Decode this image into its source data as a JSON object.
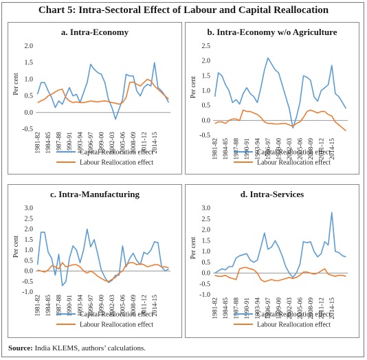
{
  "title": "Chart 5: Intra-Sectoral Effect of Labour and Capital Reallocation",
  "source": {
    "label": "Source:",
    "text": "India KLEMS, authors’ calculations."
  },
  "colors": {
    "capital": "#5B9BD5",
    "labour": "#ED7D31"
  },
  "chart_data": [
    {
      "type": "line",
      "title": "a. Intra-Economy",
      "ylabel": "Per cent",
      "ylim": [
        -0.5,
        2.0
      ],
      "yticks": [
        "2.0",
        "1.5",
        "1.0",
        "0.5",
        "0.0",
        "-0.5"
      ],
      "yvals": [
        2.0,
        1.5,
        1.0,
        0.5,
        0.0,
        -0.5
      ],
      "x_tick_labels": [
        "1981-82",
        "1984-85",
        "1987-88",
        "1990-91",
        "1993-94",
        "1996-97",
        "1999-00",
        "2002-03",
        "2005-06",
        "2008-09",
        "2011-12",
        "2014-15"
      ],
      "series": [
        {
          "name": "Capital Reallocation effect",
          "values": [
            0.55,
            0.9,
            0.9,
            0.65,
            0.45,
            0.15,
            0.35,
            0.25,
            0.5,
            0.75,
            0.5,
            0.55,
            0.3,
            0.6,
            0.9,
            1.45,
            1.3,
            1.2,
            1.15,
            0.9,
            0.4,
            0.15,
            -0.2,
            0.1,
            0.4,
            1.15,
            1.1,
            1.1,
            0.65,
            0.5,
            0.75,
            0.85,
            0.8,
            1.5,
            0.75,
            0.65,
            0.5,
            0.3
          ]
        },
        {
          "name": "Labour Reallocation effect",
          "values": [
            0.3,
            0.35,
            0.4,
            0.5,
            0.55,
            0.62,
            0.68,
            0.7,
            0.45,
            0.35,
            0.3,
            0.32,
            0.3,
            0.3,
            0.32,
            0.35,
            0.33,
            0.32,
            0.34,
            0.35,
            0.33,
            0.3,
            0.28,
            0.25,
            0.3,
            0.45,
            0.9,
            0.92,
            0.85,
            0.8,
            0.9,
            1.0,
            0.95,
            0.8,
            0.7,
            0.6,
            0.5,
            0.4
          ]
        }
      ]
    },
    {
      "type": "line",
      "title": "b. Intra-Economy w/o Agriculture",
      "ylabel": "Per cent",
      "ylim": [
        -0.5,
        2.5
      ],
      "yticks": [
        "2.5",
        "2.0",
        "1.5",
        "1.0",
        "0.5",
        "0.0",
        "-0.5"
      ],
      "yvals": [
        2.5,
        2.0,
        1.5,
        1.0,
        0.5,
        0.0,
        -0.5
      ],
      "x_tick_labels": [
        "1981-82",
        "1984-85",
        "1987-88",
        "1990-91",
        "1993-94",
        "1996-97",
        "1999-00",
        "2002-03",
        "2005-06",
        "2008-09",
        "2011-12",
        "2014-15"
      ],
      "series": [
        {
          "name": "Capital Reallocation effect",
          "values": [
            0.8,
            1.6,
            1.5,
            1.2,
            1.0,
            0.6,
            0.7,
            0.55,
            0.9,
            1.1,
            0.9,
            0.8,
            0.6,
            1.1,
            1.7,
            2.1,
            1.9,
            1.7,
            1.6,
            1.2,
            0.8,
            0.4,
            -0.25,
            0.1,
            0.6,
            1.5,
            1.45,
            1.35,
            0.8,
            0.65,
            1.0,
            1.1,
            1.2,
            1.85,
            0.9,
            0.8,
            0.6,
            0.4
          ]
        },
        {
          "name": "Labour Reallocation effect",
          "values": [
            -0.1,
            -0.05,
            -0.05,
            -0.1,
            0.0,
            0.05,
            0.05,
            0.0,
            0.35,
            0.3,
            0.3,
            0.25,
            0.2,
            0.1,
            -0.05,
            -0.1,
            -0.1,
            -0.12,
            -0.12,
            -0.1,
            -0.1,
            -0.15,
            -0.2,
            -0.1,
            -0.05,
            0.1,
            0.3,
            0.35,
            0.3,
            0.25,
            0.3,
            0.3,
            0.2,
            0.15,
            -0.05,
            -0.15,
            -0.25,
            -0.35
          ]
        }
      ]
    },
    {
      "type": "line",
      "title": "c. Intra-Manufacturing",
      "ylabel": "Per cent",
      "ylim": [
        -1.0,
        3.0
      ],
      "yticks": [
        "3.0",
        "2.5",
        "2.0",
        "1.5",
        "1.0",
        "0.5",
        "0.0",
        "-0.5",
        "-1.0"
      ],
      "yvals": [
        3.0,
        2.5,
        2.0,
        1.5,
        1.0,
        0.5,
        0.0,
        -0.5,
        -1.0
      ],
      "x_tick_labels": [
        "1981-82",
        "1984-85",
        "1987-88",
        "1990-91",
        "1993-94",
        "1996-97",
        "1999-00",
        "2002-03",
        "2005-06",
        "2008-09",
        "2011-12",
        "2014-15"
      ],
      "series": [
        {
          "name": "Capital Reallocation effect",
          "values": [
            0.3,
            1.85,
            1.85,
            0.9,
            0.6,
            -0.2,
            0.8,
            -0.7,
            -0.5,
            0.6,
            1.2,
            1.0,
            0.4,
            1.0,
            2.0,
            1.15,
            1.5,
            0.8,
            0.05,
            -0.3,
            -0.55,
            -0.45,
            -0.2,
            -0.2,
            1.2,
            0.2,
            0.6,
            0.85,
            0.5,
            0.3,
            0.9,
            0.8,
            1.0,
            1.4,
            1.35,
            0.2,
            0.0,
            0.1
          ]
        },
        {
          "name": "Labour Reallocation effect",
          "values": [
            0.05,
            0.0,
            -0.05,
            0.05,
            0.25,
            0.2,
            0.1,
            0.4,
            0.2,
            0.25,
            0.3,
            0.3,
            0.2,
            0.0,
            -0.1,
            0.0,
            -0.1,
            -0.25,
            -0.35,
            -0.45,
            -0.5,
            -0.4,
            -0.3,
            -0.1,
            0.0,
            0.3,
            0.4,
            0.4,
            0.3,
            0.35,
            0.3,
            0.2,
            0.25,
            0.3,
            0.3,
            0.2,
            0.2,
            0.15
          ]
        }
      ]
    },
    {
      "type": "line",
      "title": "d. Intra-Services",
      "ylabel": "Per cent",
      "ylim": [
        -1.0,
        3.0
      ],
      "yticks": [
        "3.0",
        "2.5",
        "2.0",
        "1.5",
        "1.0",
        "0.5",
        "0.0",
        "-0.5",
        "-1.0"
      ],
      "yvals": [
        3.0,
        2.5,
        2.0,
        1.5,
        1.0,
        0.5,
        0.0,
        -0.5,
        -1.0
      ],
      "x_tick_labels": [
        "1981-82",
        "1984-85",
        "1987-88",
        "1990-91",
        "1993-94",
        "1996-97",
        "1999-00",
        "2002-03",
        "2005-06",
        "2008-09",
        "2011-12",
        "2014-15"
      ],
      "series": [
        {
          "name": "Capital Reallocation effect",
          "values": [
            0.0,
            0.1,
            0.2,
            0.15,
            0.3,
            0.3,
            0.7,
            0.8,
            0.85,
            0.9,
            0.6,
            0.5,
            0.6,
            1.2,
            1.85,
            1.1,
            1.2,
            1.5,
            1.2,
            0.8,
            0.3,
            0.0,
            -0.2,
            0.0,
            0.4,
            1.45,
            1.4,
            1.45,
            1.0,
            0.75,
            0.9,
            1.45,
            1.3,
            2.8,
            1.0,
            0.95,
            0.8,
            0.75
          ]
        },
        {
          "name": "Labour Reallocation effect",
          "values": [
            -0.1,
            -0.15,
            -0.15,
            -0.1,
            -0.2,
            -0.25,
            -0.3,
            0.2,
            0.25,
            0.25,
            0.2,
            0.15,
            0.0,
            -0.3,
            -0.4,
            -0.35,
            -0.3,
            -0.35,
            -0.35,
            -0.3,
            -0.25,
            -0.2,
            -0.25,
            -0.2,
            -0.1,
            0.05,
            0.05,
            0.0,
            -0.05,
            0.0,
            0.1,
            0.2,
            -0.05,
            -0.1,
            -0.15,
            -0.1,
            -0.1,
            -0.15
          ]
        }
      ]
    }
  ]
}
